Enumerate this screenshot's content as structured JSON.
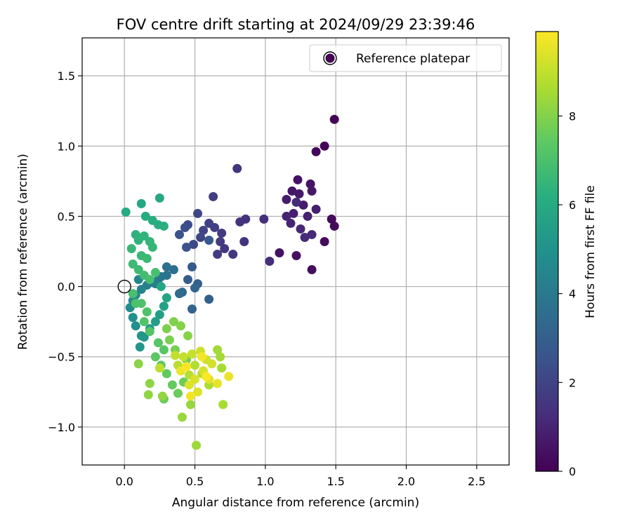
{
  "chart_data": {
    "type": "scatter",
    "title": "FOV centre drift starting at 2024/09/29 23:39:46",
    "xlabel": "Angular distance from reference (arcmin)",
    "ylabel": "Rotation from reference (arcmin)",
    "xlim": [
      -0.3,
      2.73
    ],
    "ylim": [
      -1.27,
      1.77
    ],
    "xticks": [
      0.0,
      0.5,
      1.0,
      1.5,
      2.0,
      2.5
    ],
    "xtick_labels": [
      "0.0",
      "0.5",
      "1.0",
      "1.5",
      "2.0",
      "2.5"
    ],
    "yticks": [
      -1.0,
      -0.5,
      0.0,
      0.5,
      1.0,
      1.5
    ],
    "ytick_labels": [
      "−1.0",
      "−0.5",
      "0.0",
      "0.5",
      "1.0",
      "1.5"
    ],
    "grid": true,
    "legend": {
      "placement": "upper right",
      "entries": [
        {
          "label": "",
          "marker": "filled-circle",
          "color": "#440154"
        },
        {
          "label": "Reference platepar",
          "marker": "open-circle",
          "color": "#000000"
        }
      ]
    },
    "colorbar": {
      "label": "Hours from first FF file",
      "range": [
        0,
        9.9
      ],
      "ticks": [
        0,
        2,
        4,
        6,
        8
      ],
      "tick_labels": [
        "0",
        "2",
        "4",
        "6",
        "8"
      ],
      "colormap": "viridis"
    },
    "reference_point": {
      "x": 0.0,
      "y": 0.0
    },
    "points": [
      {
        "x": 1.49,
        "y": 1.19,
        "h": 0.05
      },
      {
        "x": 1.42,
        "y": 1.0,
        "h": 0.1
      },
      {
        "x": 1.36,
        "y": 0.96,
        "h": 0.15
      },
      {
        "x": 1.47,
        "y": 0.48,
        "h": 0.2
      },
      {
        "x": 1.49,
        "y": 0.43,
        "h": 0.25
      },
      {
        "x": 1.42,
        "y": 0.32,
        "h": 0.3
      },
      {
        "x": 1.33,
        "y": 0.12,
        "h": 0.35
      },
      {
        "x": 1.22,
        "y": 0.22,
        "h": 0.4
      },
      {
        "x": 1.1,
        "y": 0.24,
        "h": 0.45
      },
      {
        "x": 1.23,
        "y": 0.76,
        "h": 0.5
      },
      {
        "x": 1.32,
        "y": 0.73,
        "h": 0.55
      },
      {
        "x": 1.19,
        "y": 0.68,
        "h": 0.6
      },
      {
        "x": 1.33,
        "y": 0.68,
        "h": 0.65
      },
      {
        "x": 1.24,
        "y": 0.66,
        "h": 0.7
      },
      {
        "x": 1.15,
        "y": 0.62,
        "h": 0.75
      },
      {
        "x": 1.27,
        "y": 0.58,
        "h": 0.8
      },
      {
        "x": 1.36,
        "y": 0.55,
        "h": 0.85
      },
      {
        "x": 1.2,
        "y": 0.52,
        "h": 0.9
      },
      {
        "x": 1.3,
        "y": 0.5,
        "h": 0.95
      },
      {
        "x": 1.15,
        "y": 0.5,
        "h": 1.0
      },
      {
        "x": 1.18,
        "y": 0.45,
        "h": 1.05
      },
      {
        "x": 1.25,
        "y": 0.41,
        "h": 1.1
      },
      {
        "x": 1.33,
        "y": 0.37,
        "h": 1.15
      },
      {
        "x": 1.28,
        "y": 0.35,
        "h": 1.2
      },
      {
        "x": 1.22,
        "y": 0.6,
        "h": 1.25
      },
      {
        "x": 1.03,
        "y": 0.18,
        "h": 1.3
      },
      {
        "x": 0.99,
        "y": 0.48,
        "h": 1.35
      },
      {
        "x": 0.86,
        "y": 0.48,
        "h": 1.4
      },
      {
        "x": 0.82,
        "y": 0.46,
        "h": 1.45
      },
      {
        "x": 0.85,
        "y": 0.32,
        "h": 1.5
      },
      {
        "x": 0.8,
        "y": 0.84,
        "h": 1.55
      },
      {
        "x": 0.77,
        "y": 0.23,
        "h": 1.6
      },
      {
        "x": 0.71,
        "y": 0.27,
        "h": 1.65
      },
      {
        "x": 0.69,
        "y": 0.38,
        "h": 1.7
      },
      {
        "x": 0.68,
        "y": 0.32,
        "h": 1.75
      },
      {
        "x": 0.66,
        "y": 0.23,
        "h": 1.8
      },
      {
        "x": 0.63,
        "y": 0.64,
        "h": 1.85
      },
      {
        "x": 0.64,
        "y": 0.42,
        "h": 1.9
      },
      {
        "x": 0.6,
        "y": 0.45,
        "h": 1.95
      },
      {
        "x": 0.56,
        "y": 0.4,
        "h": 2.0
      },
      {
        "x": 0.54,
        "y": 0.35,
        "h": 2.05
      },
      {
        "x": 0.52,
        "y": 0.52,
        "h": 2.1
      },
      {
        "x": 0.49,
        "y": 0.3,
        "h": 2.2
      },
      {
        "x": 0.45,
        "y": 0.44,
        "h": 2.3
      },
      {
        "x": 0.43,
        "y": 0.42,
        "h": 2.4
      },
      {
        "x": 0.44,
        "y": 0.28,
        "h": 2.5
      },
      {
        "x": 0.39,
        "y": 0.37,
        "h": 2.6
      },
      {
        "x": 0.6,
        "y": 0.33,
        "h": 2.7
      },
      {
        "x": 0.48,
        "y": 0.14,
        "h": 2.8
      },
      {
        "x": 0.45,
        "y": 0.05,
        "h": 2.9
      },
      {
        "x": 0.52,
        "y": 0.02,
        "h": 3.0
      },
      {
        "x": 0.6,
        "y": -0.09,
        "h": 3.1
      },
      {
        "x": 0.48,
        "y": -0.16,
        "h": 3.2
      },
      {
        "x": 0.5,
        "y": -0.01,
        "h": 3.3
      },
      {
        "x": 0.41,
        "y": -0.04,
        "h": 3.4
      },
      {
        "x": 0.39,
        "y": -0.05,
        "h": 3.5
      },
      {
        "x": 0.35,
        "y": 0.12,
        "h": 3.6
      },
      {
        "x": 0.3,
        "y": 0.14,
        "h": 3.7
      },
      {
        "x": 0.3,
        "y": 0.08,
        "h": 3.8
      },
      {
        "x": 0.26,
        "y": 0.07,
        "h": 3.9
      },
      {
        "x": 0.24,
        "y": 0.05,
        "h": 4.0
      },
      {
        "x": 0.22,
        "y": 0.02,
        "h": 4.1
      },
      {
        "x": 0.2,
        "y": 0.03,
        "h": 4.2
      },
      {
        "x": 0.16,
        "y": 0.01,
        "h": 4.3
      },
      {
        "x": 0.12,
        "y": -0.02,
        "h": 4.4
      },
      {
        "x": 0.1,
        "y": 0.05,
        "h": 4.5
      },
      {
        "x": 0.08,
        "y": -0.06,
        "h": 4.6
      },
      {
        "x": 0.06,
        "y": -0.1,
        "h": 4.7
      },
      {
        "x": 0.04,
        "y": -0.15,
        "h": 4.8
      },
      {
        "x": 0.06,
        "y": -0.22,
        "h": 4.9
      },
      {
        "x": 0.08,
        "y": -0.28,
        "h": 5.0
      },
      {
        "x": 0.12,
        "y": -0.35,
        "h": 5.1
      },
      {
        "x": 0.11,
        "y": -0.43,
        "h": 5.2
      },
      {
        "x": 0.14,
        "y": -0.36,
        "h": 5.3
      },
      {
        "x": 0.18,
        "y": -0.3,
        "h": 5.4
      },
      {
        "x": 0.22,
        "y": -0.25,
        "h": 5.5
      },
      {
        "x": 0.25,
        "y": -0.2,
        "h": 5.6
      },
      {
        "x": 0.28,
        "y": -0.14,
        "h": 5.7
      },
      {
        "x": 0.3,
        "y": -0.08,
        "h": 5.8
      },
      {
        "x": 0.26,
        "y": 0.0,
        "h": 5.9
      },
      {
        "x": 0.25,
        "y": 0.63,
        "h": 6.0
      },
      {
        "x": 0.12,
        "y": 0.59,
        "h": 5.95
      },
      {
        "x": 0.01,
        "y": 0.53,
        "h": 6.1
      },
      {
        "x": 0.15,
        "y": 0.5,
        "h": 6.15
      },
      {
        "x": 0.2,
        "y": 0.47,
        "h": 6.2
      },
      {
        "x": 0.24,
        "y": 0.44,
        "h": 6.25
      },
      {
        "x": 0.28,
        "y": 0.43,
        "h": 6.3
      },
      {
        "x": 0.08,
        "y": 0.37,
        "h": 6.35
      },
      {
        "x": 0.1,
        "y": 0.33,
        "h": 6.4
      },
      {
        "x": 0.14,
        "y": 0.36,
        "h": 6.45
      },
      {
        "x": 0.18,
        "y": 0.32,
        "h": 6.5
      },
      {
        "x": 0.2,
        "y": 0.28,
        "h": 6.55
      },
      {
        "x": 0.05,
        "y": 0.27,
        "h": 6.6
      },
      {
        "x": 0.12,
        "y": 0.22,
        "h": 6.65
      },
      {
        "x": 0.16,
        "y": 0.2,
        "h": 6.7
      },
      {
        "x": 0.06,
        "y": 0.16,
        "h": 6.75
      },
      {
        "x": 0.1,
        "y": 0.12,
        "h": 6.8
      },
      {
        "x": 0.14,
        "y": 0.08,
        "h": 6.85
      },
      {
        "x": 0.18,
        "y": 0.05,
        "h": 6.9
      },
      {
        "x": 0.22,
        "y": 0.1,
        "h": 6.95
      },
      {
        "x": 0.06,
        "y": -0.05,
        "h": 7.0
      },
      {
        "x": 0.08,
        "y": -0.12,
        "h": 7.05
      },
      {
        "x": 0.12,
        "y": -0.12,
        "h": 7.1
      },
      {
        "x": 0.16,
        "y": -0.18,
        "h": 7.15
      },
      {
        "x": 0.14,
        "y": -0.25,
        "h": 7.2
      },
      {
        "x": 0.18,
        "y": -0.32,
        "h": 7.25
      },
      {
        "x": 0.24,
        "y": -0.4,
        "h": 7.3
      },
      {
        "x": 0.28,
        "y": -0.45,
        "h": 7.35
      },
      {
        "x": 0.22,
        "y": -0.5,
        "h": 7.4
      },
      {
        "x": 0.26,
        "y": -0.56,
        "h": 7.45
      },
      {
        "x": 0.3,
        "y": -0.62,
        "h": 7.5
      },
      {
        "x": 0.34,
        "y": -0.7,
        "h": 7.55
      },
      {
        "x": 0.28,
        "y": -0.8,
        "h": 7.6
      },
      {
        "x": 0.38,
        "y": -0.76,
        "h": 7.65
      },
      {
        "x": 0.42,
        "y": -0.68,
        "h": 7.7
      },
      {
        "x": 0.4,
        "y": -0.6,
        "h": 7.75
      },
      {
        "x": 0.44,
        "y": -0.52,
        "h": 7.8
      },
      {
        "x": 0.36,
        "y": -0.45,
        "h": 7.85
      },
      {
        "x": 0.32,
        "y": -0.38,
        "h": 7.9
      },
      {
        "x": 0.3,
        "y": -0.3,
        "h": 7.95
      },
      {
        "x": 0.35,
        "y": -0.25,
        "h": 8.0
      },
      {
        "x": 0.4,
        "y": -0.28,
        "h": 8.05
      },
      {
        "x": 0.45,
        "y": -0.35,
        "h": 8.1
      },
      {
        "x": 0.1,
        "y": -0.55,
        "h": 8.15
      },
      {
        "x": 0.18,
        "y": -0.69,
        "h": 8.2
      },
      {
        "x": 0.17,
        "y": -0.77,
        "h": 8.25
      },
      {
        "x": 0.27,
        "y": -0.78,
        "h": 8.3
      },
      {
        "x": 0.47,
        "y": -0.84,
        "h": 8.35
      },
      {
        "x": 0.41,
        "y": -0.93,
        "h": 8.4
      },
      {
        "x": 0.51,
        "y": -1.13,
        "h": 8.45
      },
      {
        "x": 0.66,
        "y": -0.45,
        "h": 8.5
      },
      {
        "x": 0.68,
        "y": -0.5,
        "h": 8.55
      },
      {
        "x": 0.69,
        "y": -0.58,
        "h": 8.6
      },
      {
        "x": 0.7,
        "y": -0.84,
        "h": 8.65
      },
      {
        "x": 0.6,
        "y": -0.7,
        "h": 8.7
      },
      {
        "x": 0.55,
        "y": -0.62,
        "h": 8.75
      },
      {
        "x": 0.5,
        "y": -0.56,
        "h": 8.8
      },
      {
        "x": 0.46,
        "y": -0.63,
        "h": 8.85
      },
      {
        "x": 0.38,
        "y": -0.56,
        "h": 8.9
      },
      {
        "x": 0.25,
        "y": -0.58,
        "h": 8.95
      },
      {
        "x": 0.36,
        "y": -0.49,
        "h": 9.0
      },
      {
        "x": 0.42,
        "y": -0.5,
        "h": 9.05
      },
      {
        "x": 0.48,
        "y": -0.48,
        "h": 9.1
      },
      {
        "x": 0.54,
        "y": -0.46,
        "h": 9.15
      },
      {
        "x": 0.58,
        "y": -0.52,
        "h": 9.2
      },
      {
        "x": 0.62,
        "y": -0.55,
        "h": 9.25
      },
      {
        "x": 0.56,
        "y": -0.6,
        "h": 9.3
      },
      {
        "x": 0.5,
        "y": -0.66,
        "h": 9.35
      },
      {
        "x": 0.46,
        "y": -0.7,
        "h": 9.4
      },
      {
        "x": 0.52,
        "y": -0.75,
        "h": 9.45
      },
      {
        "x": 0.6,
        "y": -0.66,
        "h": 9.5
      },
      {
        "x": 0.66,
        "y": -0.69,
        "h": 9.55
      },
      {
        "x": 0.74,
        "y": -0.64,
        "h": 9.6
      },
      {
        "x": 0.4,
        "y": -0.6,
        "h": 9.65
      },
      {
        "x": 0.47,
        "y": -0.78,
        "h": 9.7
      },
      {
        "x": 0.55,
        "y": -0.5,
        "h": 9.75
      },
      {
        "x": 0.44,
        "y": -0.57,
        "h": 9.8
      },
      {
        "x": 0.58,
        "y": -0.64,
        "h": 9.85
      }
    ]
  }
}
